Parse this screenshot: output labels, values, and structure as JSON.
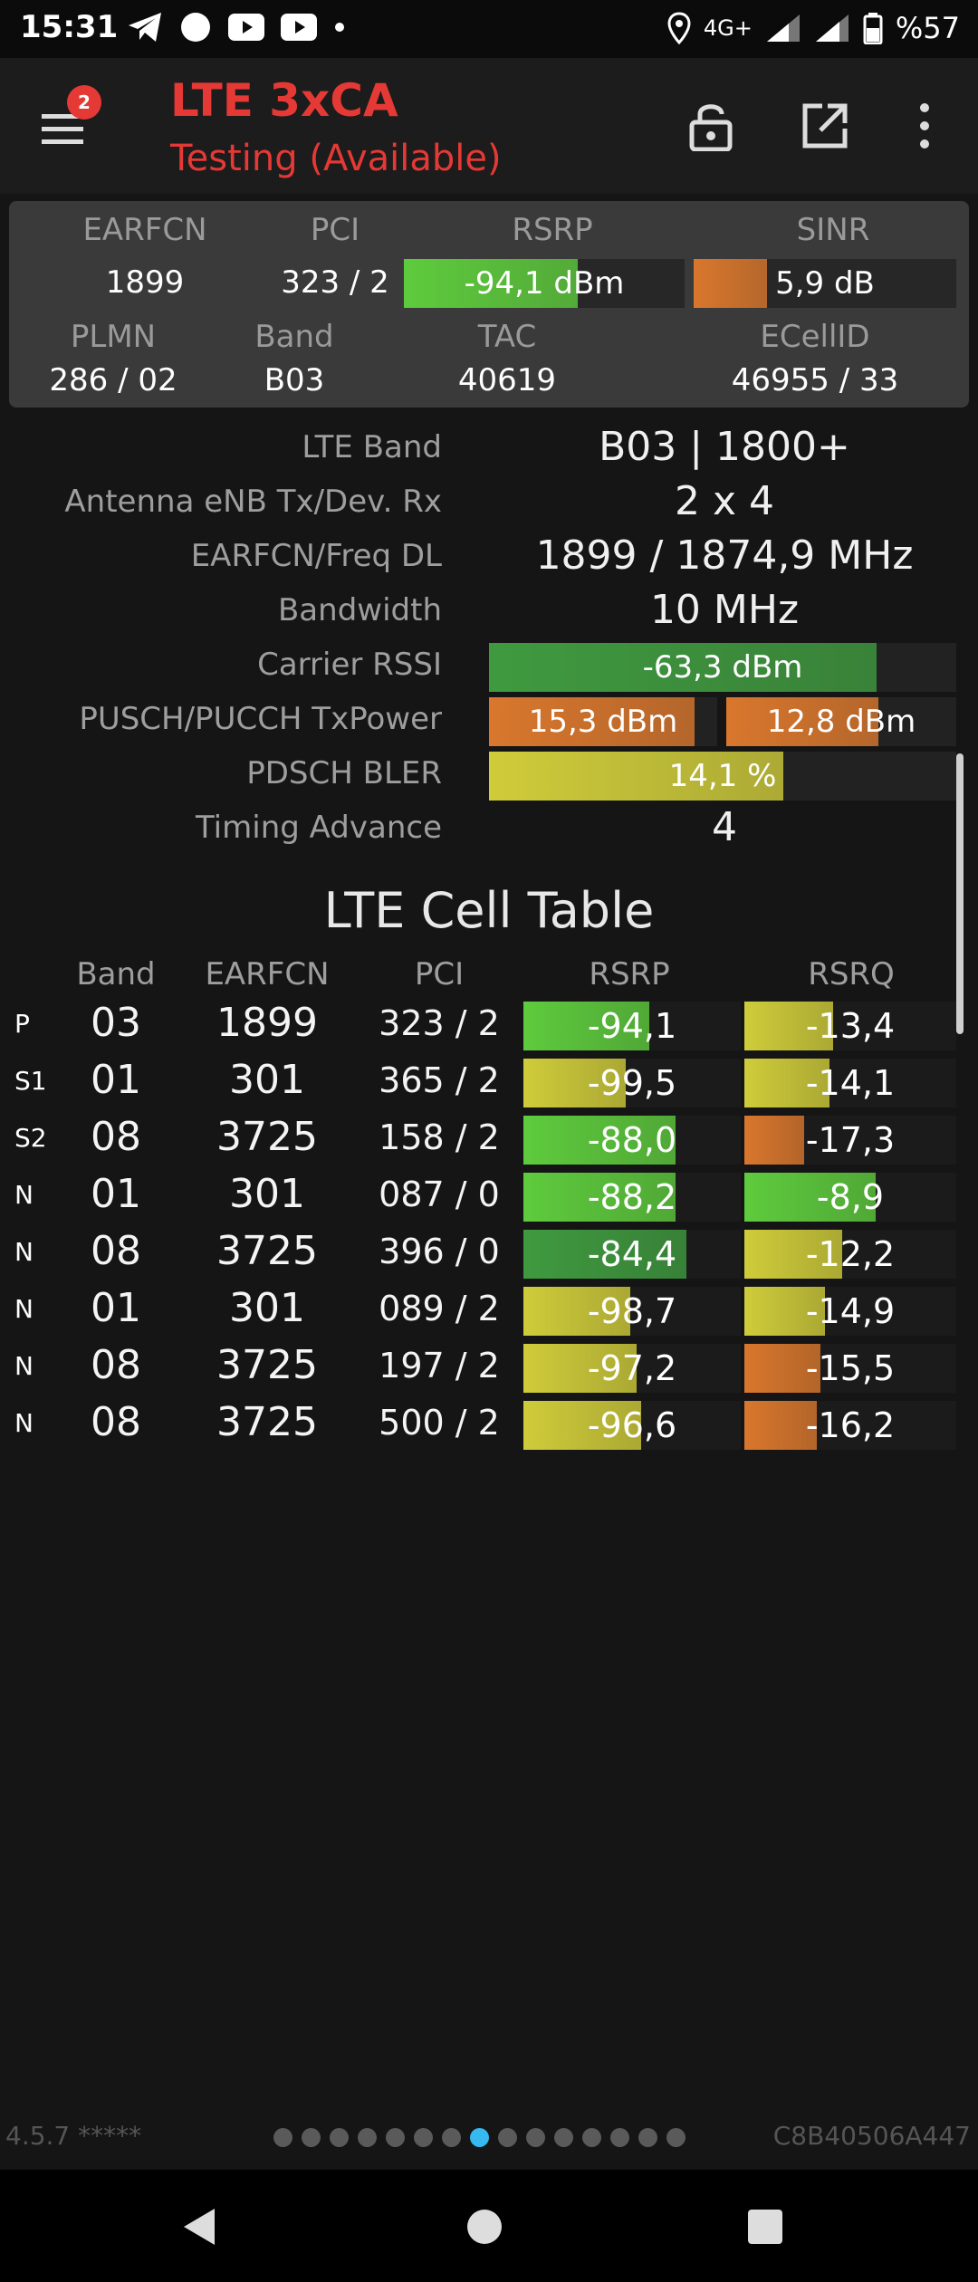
{
  "status_bar": {
    "time": "15:31",
    "network": "4G+",
    "battery": "%57",
    "left_icons": [
      "telegram-icon",
      "circle-notification-icon",
      "youtube-icon",
      "youtube-icon",
      "dot-icon"
    ],
    "right_icons": [
      "location-icon",
      "signal-icon",
      "signal-icon",
      "battery-icon"
    ]
  },
  "app_bar": {
    "title": "LTE 3xCA",
    "subtitle": "Testing (Available)",
    "badge_count": "2",
    "title_color": "#e53935",
    "actions": [
      "lock-icon",
      "open-external-icon",
      "more-vert-icon"
    ]
  },
  "summary": {
    "labels": {
      "earfcn": "EARFCN",
      "pci": "PCI",
      "rsrp": "RSRP",
      "sinr": "SINR",
      "plmn": "PLMN",
      "band": "Band",
      "tac": "TAC",
      "ecellid": "ECellID"
    },
    "earfcn": "1899",
    "pci": "323 / 2",
    "rsrp": {
      "text": "-94,1 dBm",
      "level": 0.62,
      "color": "#5ecb3d"
    },
    "sinr": {
      "text": "5,9 dB",
      "level": 0.28,
      "color": "#d9772d"
    },
    "plmn": "286 / 02",
    "band": "B03",
    "tac": "40619",
    "ecellid": "46955 / 33"
  },
  "details": {
    "lte_band": {
      "label": "LTE Band",
      "value": "B03 | 1800+"
    },
    "antenna": {
      "label": "Antenna eNB Tx/Dev. Rx",
      "value": "2 x 4"
    },
    "earfcn_freq": {
      "label": "EARFCN/Freq DL",
      "value": "1899 / 1874,9 MHz"
    },
    "bandwidth": {
      "label": "Bandwidth",
      "value": "10 MHz"
    },
    "carrier_rssi": {
      "label": "Carrier RSSI",
      "text": "-63,3 dBm",
      "level": 0.83,
      "color": "#3f9a3f"
    },
    "tx_power": {
      "label": "PUSCH/PUCCH TxPower",
      "pusch": {
        "text": "15,3 dBm",
        "level": 0.9,
        "color": "#d9772d"
      },
      "pucch": {
        "text": "12,8 dBm",
        "level": 0.66,
        "color": "#d9772d"
      }
    },
    "pdsch_bler": {
      "label": "PDSCH BLER",
      "text": "14,1 %",
      "level": 0.63,
      "color": "#cfcc3a"
    },
    "timing_advance": {
      "label": "Timing Advance",
      "value": "4"
    }
  },
  "cell_table": {
    "title": "LTE Cell Table",
    "headers": {
      "band": "Band",
      "earfcn": "EARFCN",
      "pci": "PCI",
      "rsrp": "RSRP",
      "rsrq": "RSRQ"
    },
    "rows": [
      {
        "type": "P",
        "band": "03",
        "earfcn": "1899",
        "pci": "323 / 2",
        "rsrp": "-94,1",
        "rsrp_level": 0.58,
        "rsrp_color": "#5ecb3d",
        "rsrq": "-13,4",
        "rsrq_level": 0.42,
        "rsrq_color": "#cfcc3a"
      },
      {
        "type": "S1",
        "band": "01",
        "earfcn": "301",
        "pci": "365 / 2",
        "rsrp": "-99,5",
        "rsrp_level": 0.47,
        "rsrp_color": "#cfcc3a",
        "rsrq": "-14,1",
        "rsrq_level": 0.4,
        "rsrq_color": "#cfcc3a"
      },
      {
        "type": "S2",
        "band": "08",
        "earfcn": "3725",
        "pci": "158 / 2",
        "rsrp": "-88,0",
        "rsrp_level": 0.7,
        "rsrp_color": "#5ecb3d",
        "rsrq": "-17,3",
        "rsrq_level": 0.28,
        "rsrq_color": "#d9772d"
      },
      {
        "type": "N",
        "band": "01",
        "earfcn": "301",
        "pci": "087 / 0",
        "rsrp": "-88,2",
        "rsrp_level": 0.7,
        "rsrp_color": "#5ecb3d",
        "rsrq": "-8,9",
        "rsrq_level": 0.62,
        "rsrq_color": "#5ecb3d"
      },
      {
        "type": "N",
        "band": "08",
        "earfcn": "3725",
        "pci": "396 / 0",
        "rsrp": "-84,4",
        "rsrp_level": 0.75,
        "rsrp_color": "#3f9a3f",
        "rsrq": "-12,2",
        "rsrq_level": 0.46,
        "rsrq_color": "#cfcc3a"
      },
      {
        "type": "N",
        "band": "01",
        "earfcn": "301",
        "pci": "089 / 2",
        "rsrp": "-98,7",
        "rsrp_level": 0.49,
        "rsrp_color": "#cfcc3a",
        "rsrq": "-14,9",
        "rsrq_level": 0.38,
        "rsrq_color": "#cfcc3a"
      },
      {
        "type": "N",
        "band": "08",
        "earfcn": "3725",
        "pci": "197 / 2",
        "rsrp": "-97,2",
        "rsrp_level": 0.52,
        "rsrp_color": "#cfcc3a",
        "rsrq": "-15,5",
        "rsrq_level": 0.36,
        "rsrq_color": "#d9772d"
      },
      {
        "type": "N",
        "band": "08",
        "earfcn": "3725",
        "pci": "500 / 2",
        "rsrp": "-96,6",
        "rsrp_level": 0.54,
        "rsrp_color": "#cfcc3a",
        "rsrq": "-16,2",
        "rsrq_level": 0.34,
        "rsrq_color": "#d9772d"
      }
    ]
  },
  "footer": {
    "version": "4.5.7 *****",
    "device_id": "C8B40506A447",
    "page_count": 15,
    "active_page": 8
  },
  "nav_bar": {
    "buttons": [
      "back-icon",
      "home-icon",
      "recents-icon"
    ]
  }
}
